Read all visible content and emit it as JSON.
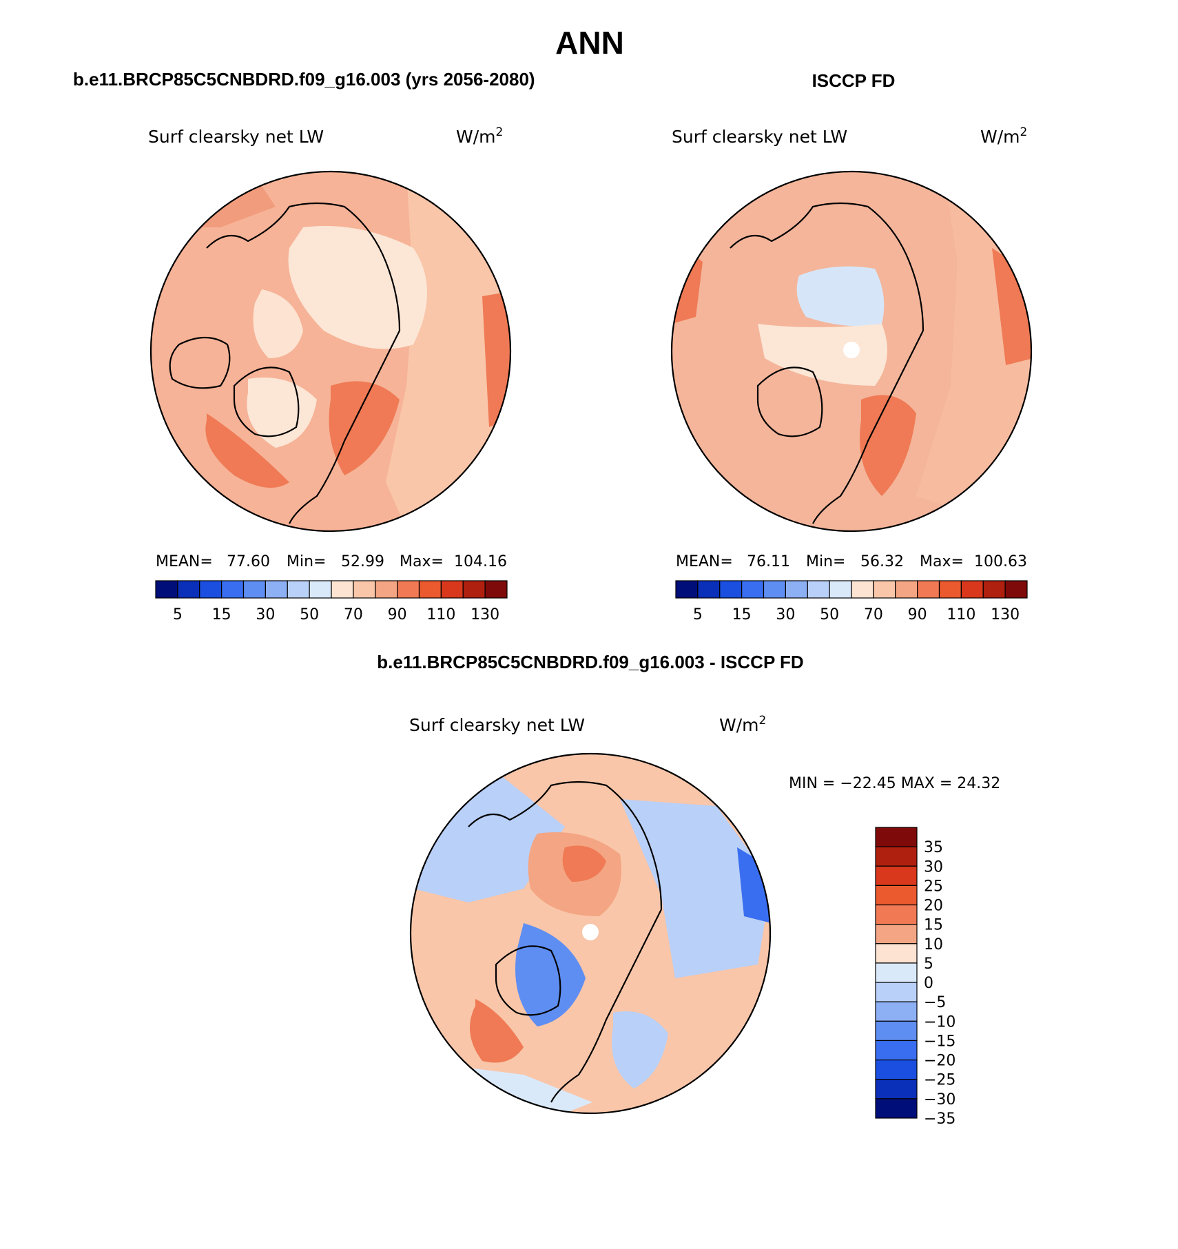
{
  "page_title": "ANN",
  "panels": [
    {
      "title": "b.e11.BRCP85C5CNBDRD.f09_g16.003 (yrs 2056-2080)",
      "variable": "Surf clearsky net LW",
      "units": "W/m",
      "units_sup": "2",
      "stats": {
        "mean_label": "MEAN=",
        "mean": "77.60",
        "min_label": "Min=",
        "min": "52.99",
        "max_label": "Max=",
        "max": "104.16"
      },
      "map_levels": [
        "#F4B59A",
        "#F19C7C",
        "#FBD1B7",
        "#FCE6D6",
        "#F47E5F",
        "#EC6A47",
        "#F4B59A",
        "#F9C6A9"
      ]
    },
    {
      "title": "ISCCP FD",
      "variable": "Surf clearsky net LW",
      "units": "W/m",
      "units_sup": "2",
      "stats": {
        "mean_label": "MEAN=",
        "mean": "76.11",
        "min_label": "Min=",
        "min": "56.32",
        "max_label": "Max=",
        "max": "100.63"
      },
      "map_levels": [
        "#F9C6A9",
        "#F4B59A",
        "#FBD1B7",
        "#D6E6F8",
        "#F47E5F",
        "#EC6A47",
        "#F4B59A",
        "#F9C6A9"
      ]
    }
  ],
  "abs_colorbar": {
    "colors": [
      "#000E7A",
      "#0A2FB8",
      "#1A4FE0",
      "#3A6EF0",
      "#5F8EF2",
      "#8DB0F5",
      "#B9D0F8",
      "#DAE9FA",
      "#FDE3D1",
      "#F9C6A9",
      "#F4A583",
      "#F17A55",
      "#EB5A2E",
      "#D9381C",
      "#B0200F",
      "#7F0A0A"
    ],
    "tick_labels": [
      "5",
      "15",
      "30",
      "50",
      "70",
      "90",
      "110",
      "130"
    ]
  },
  "diff_panel": {
    "title": "b.e11.BRCP85C5CNBDRD.f09_g16.003 - ISCCP FD",
    "variable": "Surf clearsky net LW",
    "units": "W/m",
    "units_sup": "2",
    "minmax_text": "MIN = −22.45 MAX =   24.32",
    "colorbar": {
      "colors_top_to_bottom": [
        "#7F0A0A",
        "#B0200F",
        "#D9381C",
        "#EB5A2E",
        "#F17A55",
        "#F4A583",
        "#FDE3D1",
        "#DAE9FA",
        "#B9D0F8",
        "#8DB0F5",
        "#5F8EF2",
        "#3A6EF0",
        "#1A4FE0",
        "#0A2FB8",
        "#000E7A"
      ],
      "tick_labels": [
        "35",
        "30",
        "25",
        "20",
        "15",
        "10",
        "5",
        "0",
        "−5",
        "−10",
        "−15",
        "−20",
        "−25",
        "−30",
        "−35"
      ]
    }
  }
}
